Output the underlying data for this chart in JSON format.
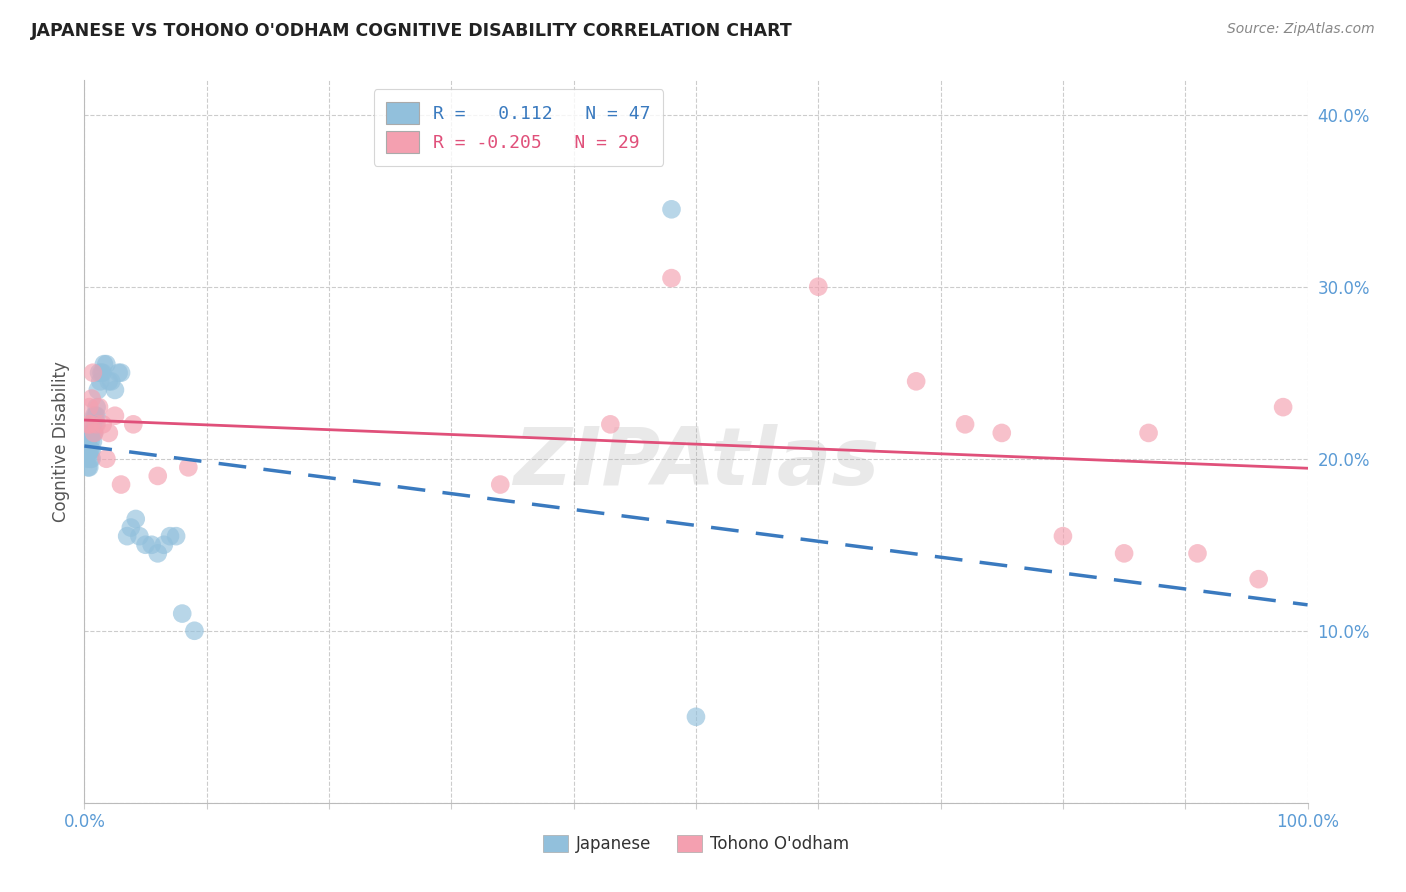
{
  "title": "JAPANESE VS TOHONO O'ODHAM COGNITIVE DISABILITY CORRELATION CHART",
  "source": "Source: ZipAtlas.com",
  "ylabel": "Cognitive Disability",
  "xlim": [
    0.0,
    1.0
  ],
  "ylim": [
    0.0,
    0.42
  ],
  "x_ticks": [
    0.0,
    0.1,
    0.2,
    0.3,
    0.4,
    0.5,
    0.6,
    0.7,
    0.8,
    0.9,
    1.0
  ],
  "y_ticks": [
    0.0,
    0.1,
    0.2,
    0.3,
    0.4
  ],
  "y_tick_labels": [
    "",
    "10.0%",
    "20.0%",
    "30.0%",
    "40.0%"
  ],
  "grid_color": "#cccccc",
  "background_color": "#ffffff",
  "watermark": "ZIPAtlas",
  "blue_color": "#92c0dc",
  "pink_color": "#f4a0b0",
  "blue_line_color": "#3a7abf",
  "pink_line_color": "#e0507a",
  "R1": 0.112,
  "N1": 47,
  "R2": -0.205,
  "N2": 29,
  "japanese_x": [
    0.002,
    0.003,
    0.003,
    0.004,
    0.004,
    0.004,
    0.005,
    0.005,
    0.005,
    0.006,
    0.006,
    0.006,
    0.007,
    0.007,
    0.007,
    0.008,
    0.008,
    0.009,
    0.009,
    0.01,
    0.01,
    0.011,
    0.012,
    0.013,
    0.014,
    0.015,
    0.016,
    0.018,
    0.02,
    0.022,
    0.025,
    0.028,
    0.03,
    0.035,
    0.038,
    0.042,
    0.045,
    0.05,
    0.055,
    0.06,
    0.065,
    0.07,
    0.075,
    0.08,
    0.09,
    0.48,
    0.5
  ],
  "japanese_y": [
    0.2,
    0.195,
    0.21,
    0.205,
    0.215,
    0.195,
    0.2,
    0.21,
    0.205,
    0.215,
    0.2,
    0.205,
    0.215,
    0.22,
    0.21,
    0.225,
    0.215,
    0.22,
    0.225,
    0.225,
    0.23,
    0.24,
    0.25,
    0.245,
    0.25,
    0.25,
    0.255,
    0.255,
    0.245,
    0.245,
    0.24,
    0.25,
    0.25,
    0.155,
    0.16,
    0.165,
    0.155,
    0.15,
    0.15,
    0.145,
    0.15,
    0.155,
    0.155,
    0.11,
    0.1,
    0.345,
    0.05
  ],
  "tohono_x": [
    0.003,
    0.004,
    0.005,
    0.006,
    0.007,
    0.008,
    0.01,
    0.012,
    0.015,
    0.018,
    0.02,
    0.025,
    0.03,
    0.04,
    0.06,
    0.085,
    0.34,
    0.43,
    0.48,
    0.6,
    0.68,
    0.72,
    0.75,
    0.8,
    0.85,
    0.87,
    0.91,
    0.96,
    0.98
  ],
  "tohono_y": [
    0.22,
    0.23,
    0.22,
    0.235,
    0.25,
    0.215,
    0.22,
    0.23,
    0.22,
    0.2,
    0.215,
    0.225,
    0.185,
    0.22,
    0.19,
    0.195,
    0.185,
    0.22,
    0.305,
    0.3,
    0.245,
    0.22,
    0.215,
    0.155,
    0.145,
    0.215,
    0.145,
    0.13,
    0.23
  ]
}
